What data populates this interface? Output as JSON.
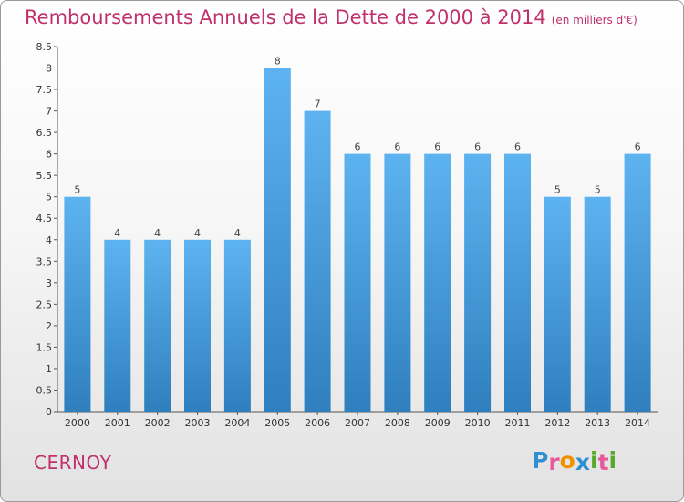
{
  "header": {
    "title": "Remboursements Annuels de la Dette de 2000 à 2014",
    "unit": "(en milliers d'€)"
  },
  "footer": {
    "commune": "CERNOY",
    "logo": {
      "letters": [
        "P",
        "r",
        "o",
        "x",
        "i",
        "t",
        "i"
      ],
      "colors": [
        "#2e8fd1",
        "#e95a9a",
        "#f29100",
        "#2e8fd1",
        "#5aa82b",
        "#e95a9a",
        "#5aa82b"
      ]
    }
  },
  "colors": {
    "bar": "#4a9fe0",
    "title": "#c0306a"
  },
  "chart_data": {
    "type": "bar",
    "title": "Remboursements Annuels de la Dette de 2000 à 2014",
    "subtitle": "(en milliers d'€)",
    "xlabel": "",
    "ylabel": "",
    "categories": [
      "2000",
      "2001",
      "2002",
      "2003",
      "2004",
      "2005",
      "2006",
      "2007",
      "2008",
      "2009",
      "2010",
      "2011",
      "2012",
      "2013",
      "2014"
    ],
    "values": [
      5,
      4,
      4,
      4,
      4,
      8,
      7,
      6,
      6,
      6,
      6,
      6,
      5,
      5,
      6
    ],
    "data_labels": [
      "5",
      "4",
      "4",
      "4",
      "4",
      "8",
      "7",
      "6",
      "6",
      "6",
      "6",
      "6",
      "5",
      "5",
      "6"
    ],
    "ylim": [
      0,
      8.5
    ],
    "yticks": [
      "0",
      "0.5",
      "1",
      "1.5",
      "2",
      "2.5",
      "3",
      "3.5",
      "4",
      "4.5",
      "5",
      "5.5",
      "6",
      "6.5",
      "7",
      "7.5",
      "8",
      "8.5"
    ],
    "grid": false,
    "legend": "none"
  }
}
